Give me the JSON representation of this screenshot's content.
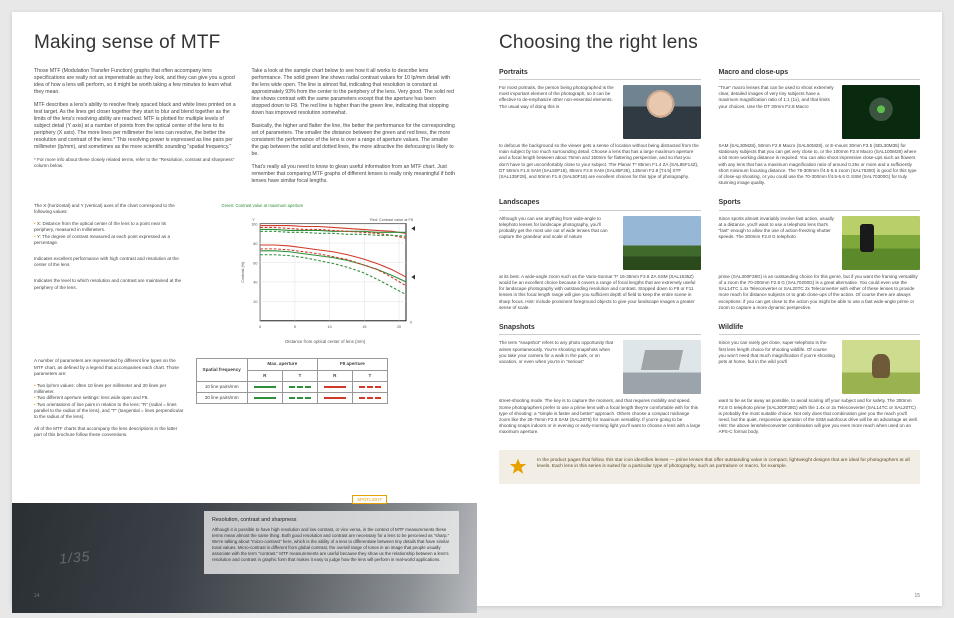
{
  "left": {
    "title": "Making sense of MTF",
    "p1": "Those MTF (Modulation Transfer Function) graphs that often accompany lens specifications are really not as impenetrable as they look, and they can give you a good idea of how a lens will perform, so it might be worth taking a few minutes to learn what they mean.",
    "p2": "MTF describes a lens's ability to resolve finely spaced black and white lines printed on a test target. As the lines get closer together they start to blur and blend together as the limits of the lens's resolving ability are reached. MTF is plotted for multiple levels of subject detail (Y axis) at a number of points from the optical center of the lens to its periphery (X axis). The more lines per millimeter the lens can resolve, the better the resolution and contrast of the lens.* This resolving power is expressed as line pairs per millimeter (lp/mm), and sometimes as the more scientific sounding \"spatial frequency.\"",
    "foot": "* For more info about these closely related terms, refer to the \"Resolution, contrast and sharpness\" column below.",
    "p3": "Take a look at the sample chart below to see how it all works to describe lens performance. The solid green line shows radial contrast values for 10 lp/mm detail with the lens wide open. The line is almost flat, indicating that resolution is constant at approximately 93% from the center to the periphery of the lens. Very good. The solid red line shows contrast with the same parameters except that the aperture has been stopped down to F8. The red line is higher than the green line, indicating that stopping down has improved resolution somewhat.",
    "p4": "Basically, the higher and flatter the line, the better the performance for the corresponding set of parameters. The smaller the distance between the green and red lines, the more consistent the performance of the lens is over a range of aperture values. The smaller the gap between the solid and dotted lines, the more attractive the defocusing is likely to be.",
    "p5": "That's really all you need to know to glean useful information from an MTF chart. Just remember that comparing MTF graphs of different lenses is really only meaningful if both lenses have similar focal lengths.",
    "chart": {
      "lblGreen": "Green: Contrast value at maximum aperture",
      "lblRed": "Red: Contrast value at F8",
      "x_label": "Distance from optical center of lens (mm)",
      "y_label": "Contrast (%)",
      "xMax": 21,
      "yMax": 100,
      "yticks": [
        20,
        40,
        60,
        80,
        100
      ],
      "xticks": [
        0,
        5,
        10,
        15,
        20
      ],
      "red_solid": [
        98,
        98,
        98,
        97,
        97,
        96,
        95,
        94,
        93,
        92,
        90
      ],
      "green_solid": [
        94,
        94,
        93,
        93,
        93,
        92,
        92,
        92,
        91,
        91,
        91
      ],
      "red_dash": [
        96,
        96,
        95,
        94,
        94,
        93,
        92,
        91,
        90,
        88,
        85
      ],
      "green_dash": [
        92,
        92,
        91,
        91,
        90,
        90,
        89,
        89,
        88,
        88,
        87
      ],
      "red2_solid": [
        78,
        78,
        77,
        75,
        73,
        71,
        68,
        64,
        59,
        53,
        45
      ],
      "green2_solid": [
        72,
        72,
        71,
        69,
        67,
        65,
        62,
        58,
        53,
        47,
        40
      ],
      "red2_dash": [
        74,
        74,
        73,
        71,
        69,
        66,
        63,
        58,
        53,
        45,
        36
      ],
      "green2_dash": [
        68,
        68,
        67,
        65,
        62,
        59,
        55,
        50,
        43,
        35,
        27
      ],
      "colors": {
        "red": "#d03a2a",
        "green": "#2f8f3a"
      },
      "note1": "Indicates excellent performance with high contrast and resolution at the center of the lens.",
      "note2": "Indicates the level to which resolution and contrast are maintained at the periphery of the lens."
    },
    "axes": {
      "intro": "The X (horizontal) and Y (vertical) axes of the chart correspond to the following values:",
      "x": "X: Distance from the optical center of the lens to a point near its periphery, measured in millimeters.",
      "y": "Y: The degree of contrast measured at each point expressed as a percentage."
    },
    "legend": {
      "intro": "A number of parameters are represented by different line types on the MTF chart, as defined by a legend that accompanies each chart. Those parameters are:",
      "b1": "Two lp/mm values: often 10 lines per millimeter and 30 lines per millimeter.",
      "b2": "Two different aperture settings: lens wide open and F8.",
      "b3": "Two orientations of line pairs in relation to the lens: \"R\" (radial = lines parallel to the radius of the lens), and \"T\" (tangential = lines perpendicular to the radius of the lens).",
      "tail": "All of the MTF charts that accompany the lens descriptions in the latter part of this brochure follow these conventions.",
      "h_sf": "Spatial frequency",
      "h_ma": "Max. aperture",
      "h_f8": "F8 aperture",
      "r": "R",
      "t": "T",
      "row10": "10 line pairs/mm",
      "row30": "30 line pairs/mm"
    },
    "spotlight": "SPOTLIGHT",
    "overlay": {
      "title": "Resolution, contrast and sharpness",
      "body": "Although it is possible to have high resolution and low contrast, or vice versa, in the context of MTF measurements these terms mean almost the same thing. Both good resolution and contrast are necessary for a lens to be perceived as \"sharp.\" We're talking about \"micro-contrast\" here, which is the ability of a lens to differentiate between tiny details that have similar tonal values. Micro-contrast is different from global contrast, the overall range of tones in an image that people usually associate with the term \"contrast.\" MTF measurements are useful because they show us the relationship between a lens's resolution and contrast in graphic form that makes it easy to judge how the lens will perform in real-world applications."
    },
    "pagenum": "14"
  },
  "right": {
    "title": "Choosing the right lens",
    "portraits": {
      "h": "Portraits",
      "a": "For most portraits, the person being photographed is the most important element of the photograph, so it can be effective to de-emphasize other non-essential elements. The usual way of doing this is",
      "b": "to defocus the background so the viewer gets a sense of location without being distracted from the main subject by too much surrounding detail. Choose a lens that has a large maximum aperture and a focal length between about 75mm and 150mm for flattering perspective, and so that you don't have to get uncomfortably close to your subject. The Planar T* 85mm F1.4 ZA (SAL85F14Z), DT 50mm F1.8 SAM (SAL50F18), 85mm F2.8 SAM (SAL85F28), 135mm F2.8 [T4.5] STF (SAL135F28), and 50mm F1.8 (SAL50F18) are excellent choices for this type of photography."
    },
    "macro": {
      "h": "Macro and close-ups",
      "a": "\"True\" macro lenses that can be used to shoot extremely clear, detailed images of very tiny subjects have a maximum magnification ratio of 1:1 (1x), and that limits your choices. Use the DT 30mm F2.8 Macro",
      "b": "SAM (SAL30M28), 50mm F2.8 Macro (SAL50M28), or E-mount 30mm F3.5 (SEL30M35) for stationary subjects that you can get very close to, or the 100mm F2.8 Macro (SAL100M28) where a bit more working distance is required. You can also shoot impressive close-ups such as flowers with any lens that has a maximum magnification ratio of around 0.25x or more and a sufficiently short minimum focusing distance. The 75-300mm f/4.5-5.6 zoom (SAL75300) is good for this type of close-up shooting, or you could use the 70-300mm f/4.5-5.6 G SSM (SAL70300G) for truly stunning image quality."
    },
    "land": {
      "h": "Landscapes",
      "a": "Although you can use anything from wide-angle to telephoto lenses for landscape photography, you'll probably get the most use out of wide lenses that can capture the grandeur and scale of nature",
      "b": "at its best. A wide-angle zoom such as the Vario-Sonnar T* 16-35mm F2.8 ZA SSM (SAL1635Z) would be an excellent choice because it covers a range of focal lengths that are extremely useful for landscape photography with outstanding resolution and contrast. Stopped down to F8 or F11 lenses in this focal length range will give you sufficient depth of field to keep the entire scene in sharp focus. Hint: include prominent foreground objects to give your landscape images a greater sense of scale."
    },
    "sports": {
      "h": "Sports",
      "a": "Since sports almost invariably involve fast action, usually at a distance, you'll want to use a telephoto lens that's \"fast\" enough to allow the use of action-freezing shutter speeds. The 300mm F2.8 G telephoto",
      "b": "prime (SAL300F28G) is an outstanding choice for this genre, but if you want the framing versatility of a zoom the 70-200mm F2.8 G (SAL70200G) is a great alternative. You could even use the SAL14TC 1.4x Teleconverter or SAL20TC 2x Teleconverter with either of these lenses to provide more reach for distance subjects or to grab close-ups of the action. Of course there are always exceptions: if you can get close to the action you might be able to use a fast wide-angle prime or zoom to capture a more dynamic perspective."
    },
    "snap": {
      "h": "Snapshots",
      "a": "The term \"snapshot\" refers to any photo opportunity that arises spontaneously. You're shooting snapshots when you take your camera for a walk in the park, or on vacation, or even when you're in \"serious\"",
      "b": "street-shooting mode. The key is to capture the moment, and that requires mobility and speed. Some photographers prefer to use a prime lens with a focal length they're comfortable with for this type of shooting: a \"simple is faster and better\" approach. Others choose a compact midrange zoom like the 28-75mm F2.8 SAM (SAL2875) for maximum versatility. If you're going to be shooting snaps indoors or in evening or early-morning light you'll want to choose a lens with a large maximum aperture."
    },
    "wild": {
      "h": "Wildlife",
      "a": "Since you can rarely get close, super-telephoto is the first lens length choice for shooting wildlife. Of course you won't need that much magnification if you're shooting pets at home, but in the wild you'll",
      "b": "want to be as far away as possible, to avoid scaring off your subject and for safety. The 300mm F2.8 G telephoto prime (SAL300F28G) with the 1.4x or 2x Teleconverter (SAL14TC or SAL20TC) is probably the most suitable choice. Not only does that combination give you the reach you'll need, but the quiet, responsive operation of the SSM autofocus drive will be an advantage as well. Hint: the above lens/teleconverter combination will give you even more reach when used on an APS-C format body."
    },
    "callout": "In the product pages that follow, this star icon identifies lenses — prime lenses that offer outstanding value in compact, lightweight designs that are ideal for photographers at all levels. Each lens in this series is suited for a particular type of photography, such as portraiture or macro, for example.",
    "pagenum": "15"
  }
}
